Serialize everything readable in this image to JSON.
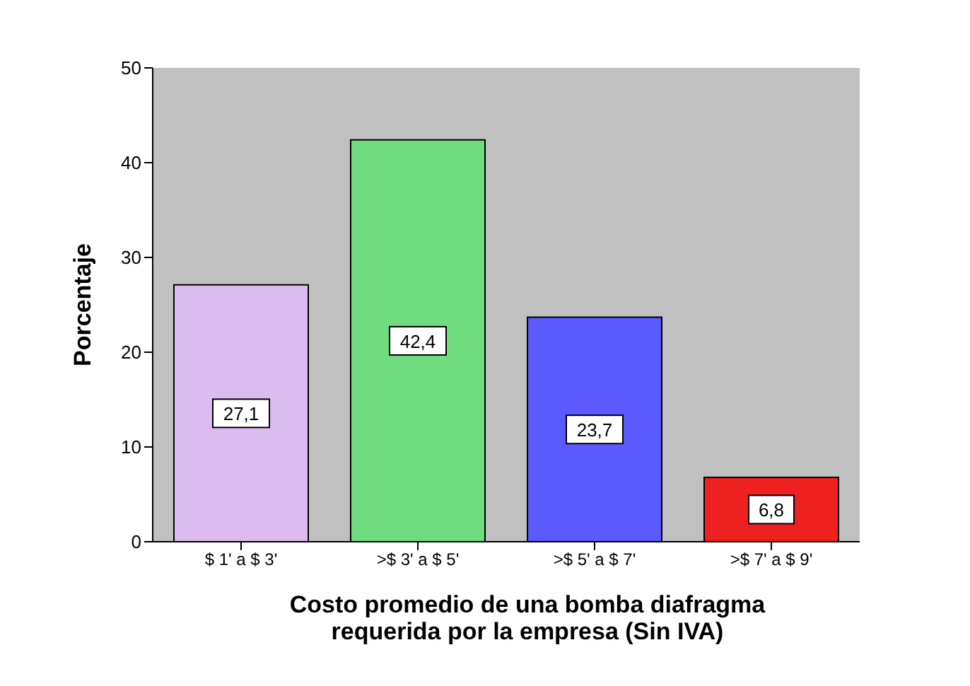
{
  "chart_data": {
    "type": "bar",
    "xlabel": "Costo promedio de una bomba diafragma\nrequerida por la empresa (Sin IVA)",
    "ylabel": "Porcentaje",
    "categories": [
      "$ 1' a $ 3'",
      ">$ 3' a $ 5'",
      ">$ 5' a $ 7'",
      ">$ 7' a $ 9'"
    ],
    "values": [
      27.1,
      42.4,
      23.7,
      6.8
    ],
    "value_labels": [
      "27,1",
      "42,4",
      "23,7",
      "6,8"
    ],
    "colors": [
      "#dcbcf0",
      "#70dc80",
      "#5a5aff",
      "#ee2020"
    ],
    "ylim": [
      0,
      50
    ],
    "yticks": [
      0,
      10,
      20,
      30,
      40,
      50
    ],
    "grid": false
  }
}
